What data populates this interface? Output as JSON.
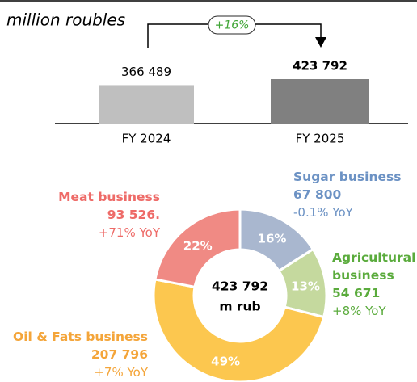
{
  "chart_data": [
    {
      "type": "bar",
      "title": "million roubles",
      "categories": [
        "FY 2024",
        "FY 2025"
      ],
      "values": [
        366489,
        423792
      ],
      "value_labels": [
        "366 489",
        "423 792"
      ],
      "colors": [
        "#bfbfbf",
        "#808080"
      ],
      "annotation": "+16%"
    },
    {
      "type": "donut",
      "categories": [
        "Sugar business",
        "Agricultural business",
        "Oil & Fats business",
        "Meat business"
      ],
      "values": [
        16,
        13,
        49,
        22
      ],
      "value_labels": [
        "16%",
        "13%",
        "49%",
        "22%"
      ],
      "amounts": [
        67800,
        54671,
        207796,
        93526
      ],
      "amount_labels": [
        "67 800",
        "54 671",
        "207 796",
        "93 526."
      ],
      "yoy": [
        "-0.1% YoY",
        "+8% YoY",
        "+7% YoY",
        "+71% YoY"
      ],
      "colors": [
        "#a9b7cf",
        "#c5d99e",
        "#fcc74f",
        "#f08a84"
      ],
      "label_colors": [
        "#6c92c4",
        "#5aab3c",
        "#f4a53a",
        "#ee6b68"
      ],
      "center_text": [
        "423 792",
        "m rub"
      ]
    }
  ]
}
